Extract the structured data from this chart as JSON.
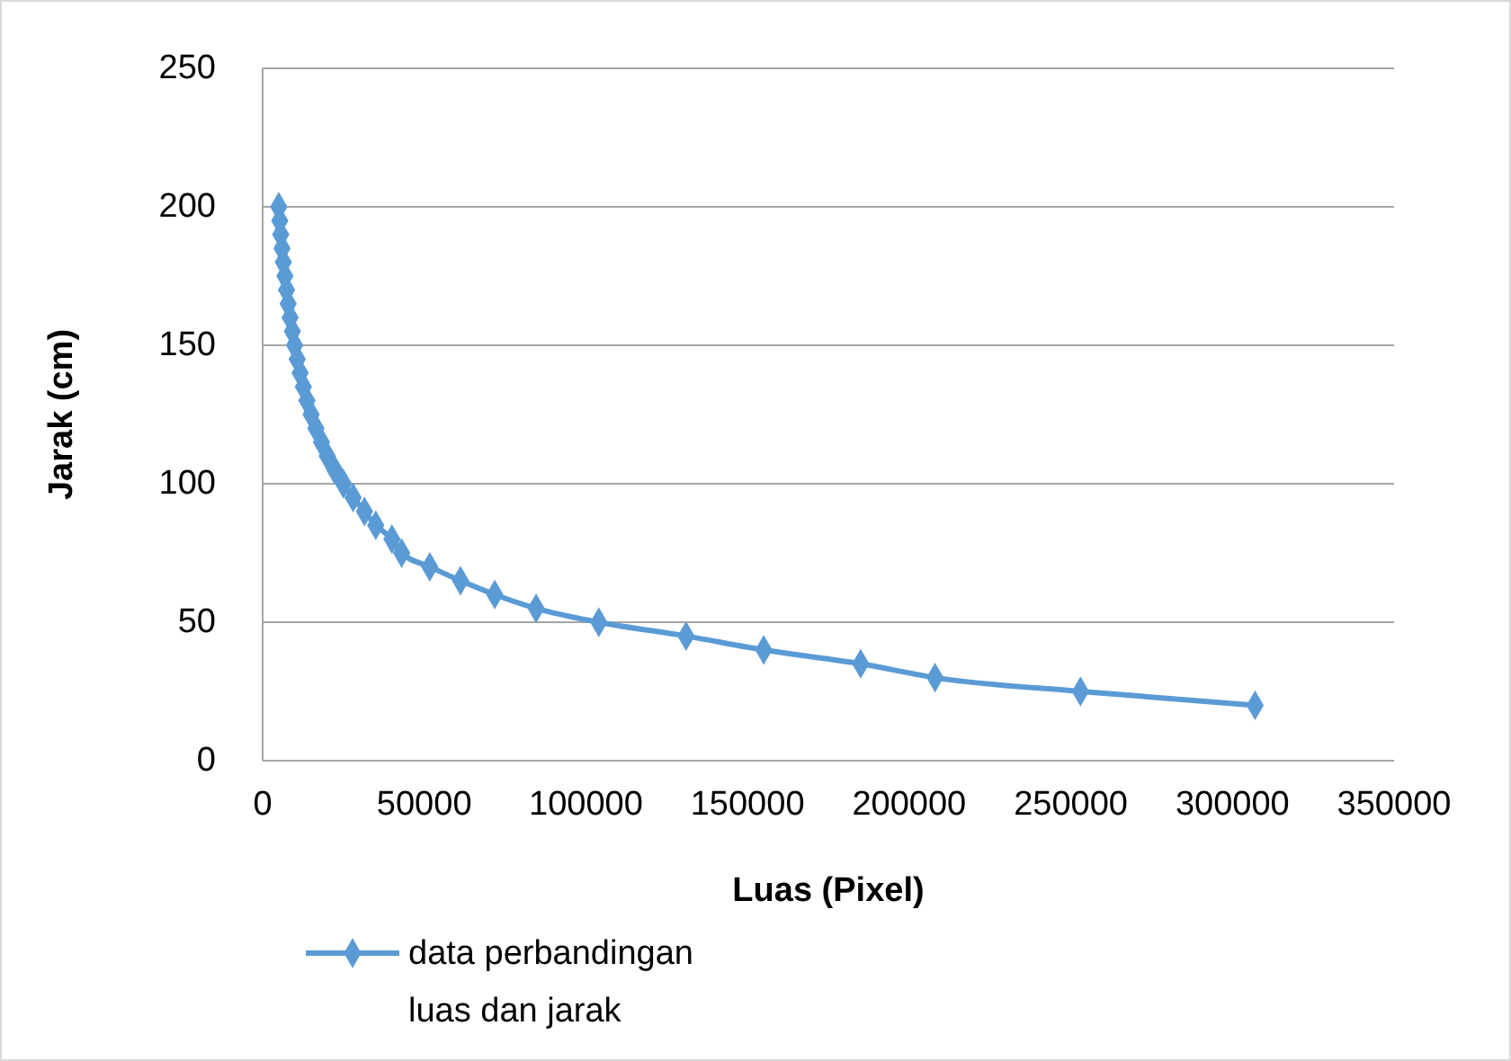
{
  "chart_data": {
    "type": "line",
    "xlabel": "Luas (Pixel)",
    "ylabel": "Jarak (cm)",
    "xlim": [
      0,
      350000
    ],
    "xticks": [
      0,
      50000,
      100000,
      150000,
      200000,
      250000,
      300000,
      350000
    ],
    "ylim": [
      0,
      250
    ],
    "yticks": [
      0,
      50,
      100,
      150,
      200,
      250
    ],
    "grid": "y",
    "legend": "bottom",
    "marker": "diamond",
    "line_style": "solid",
    "series": [
      {
        "name": "data perbandingan luas dan jarak",
        "color": "#5b9bd5",
        "x": [
          5000,
          5300,
          5600,
          6000,
          6400,
          6900,
          7400,
          7900,
          8500,
          9200,
          9900,
          10700,
          11600,
          12600,
          13700,
          15000,
          16500,
          18200,
          20000,
          22300,
          25000,
          28000,
          31500,
          35000,
          40000,
          43000,
          51700,
          61200,
          71800,
          84600,
          104000,
          131000,
          155000,
          185000,
          208000,
          253000,
          307000
        ],
        "values": [
          200,
          195,
          190,
          185,
          180,
          175,
          170,
          165,
          160,
          155,
          150,
          145,
          140,
          135,
          130,
          125,
          120,
          115,
          110,
          105,
          100,
          95,
          90,
          85,
          80,
          75,
          70,
          65,
          60,
          55,
          50,
          45,
          40,
          35,
          30,
          25,
          20
        ]
      }
    ]
  }
}
